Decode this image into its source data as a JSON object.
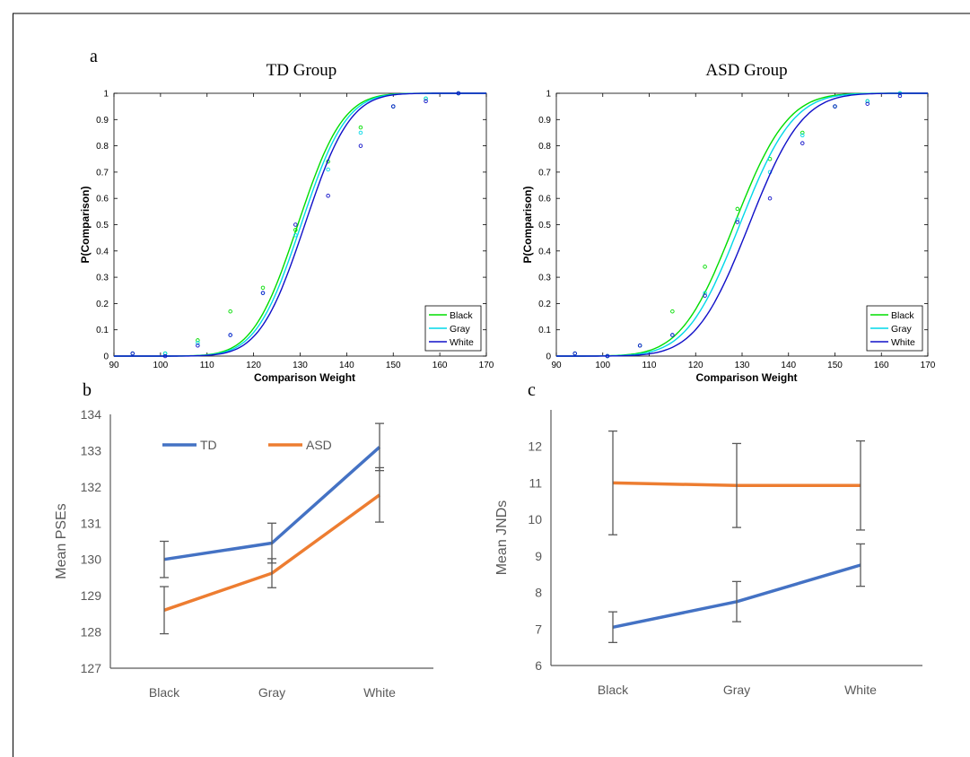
{
  "panels": {
    "a": "a",
    "b": "b",
    "c": "c"
  },
  "chart_data": [
    {
      "id": "td",
      "type": "line",
      "title": "TD Group",
      "xlabel": "Comparison Weight",
      "ylabel": "P(Comparison)",
      "xlim": [
        90,
        170
      ],
      "ylim": [
        0,
        1
      ],
      "xticks": [
        "90",
        "100",
        "110",
        "120",
        "130",
        "140",
        "150",
        "160",
        "170"
      ],
      "yticks": [
        "0",
        "0.1",
        "0.2",
        "0.3",
        "0.4",
        "0.5",
        "0.6",
        "0.7",
        "0.8",
        "0.9",
        "1"
      ],
      "legend_position": "bottom-right",
      "series": [
        {
          "name": "Black",
          "color": "#00dd00",
          "mu": 129.5,
          "sigma": 7.6,
          "points": [
            [
              94,
              0.01
            ],
            [
              101,
              0.01
            ],
            [
              108,
              0.06
            ],
            [
              115,
              0.17
            ],
            [
              122,
              0.26
            ],
            [
              129,
              0.48
            ],
            [
              136,
              0.74
            ],
            [
              143,
              0.87
            ],
            [
              150,
              0.95
            ],
            [
              157,
              0.98
            ],
            [
              164,
              1.0
            ]
          ]
        },
        {
          "name": "Gray",
          "color": "#00d8e8",
          "mu": 130.2,
          "sigma": 7.6,
          "points": [
            [
              94,
              0.01
            ],
            [
              101,
              0.01
            ],
            [
              108,
              0.05
            ],
            [
              115,
              0.08
            ],
            [
              122,
              0.24
            ],
            [
              129,
              0.46
            ],
            [
              136,
              0.71
            ],
            [
              143,
              0.85
            ],
            [
              150,
              0.95
            ],
            [
              157,
              0.98
            ],
            [
              164,
              1.0
            ]
          ]
        },
        {
          "name": "White",
          "color": "#1010c8",
          "mu": 131.0,
          "sigma": 7.6,
          "points": [
            [
              94,
              0.01
            ],
            [
              101,
              0.0
            ],
            [
              108,
              0.04
            ],
            [
              115,
              0.08
            ],
            [
              122,
              0.24
            ],
            [
              129,
              0.5
            ],
            [
              136,
              0.61
            ],
            [
              143,
              0.8
            ],
            [
              150,
              0.95
            ],
            [
              157,
              0.97
            ],
            [
              164,
              1.0
            ]
          ]
        }
      ]
    },
    {
      "id": "asd",
      "type": "line",
      "title": "ASD Group",
      "xlabel": "Comparison Weight",
      "ylabel": "P(Comparison)",
      "xlim": [
        90,
        170
      ],
      "ylim": [
        0,
        1
      ],
      "xticks": [
        "90",
        "100",
        "110",
        "120",
        "130",
        "140",
        "150",
        "160",
        "170"
      ],
      "yticks": [
        "0",
        "0.1",
        "0.2",
        "0.3",
        "0.4",
        "0.5",
        "0.6",
        "0.7",
        "0.8",
        "0.9",
        "1"
      ],
      "legend_position": "bottom-right",
      "series": [
        {
          "name": "Black",
          "color": "#00dd00",
          "mu": 128.3,
          "sigma": 9.0,
          "points": [
            [
              94,
              0.01
            ],
            [
              101,
              0.0
            ],
            [
              108,
              0.04
            ],
            [
              115,
              0.17
            ],
            [
              122,
              0.34
            ],
            [
              129,
              0.56
            ],
            [
              136,
              0.75
            ],
            [
              143,
              0.85
            ],
            [
              150,
              0.95
            ],
            [
              157,
              0.97
            ],
            [
              164,
              1.0
            ]
          ]
        },
        {
          "name": "Gray",
          "color": "#00d8e8",
          "mu": 129.5,
          "sigma": 9.0,
          "points": [
            [
              94,
              0.01
            ],
            [
              101,
              0.0
            ],
            [
              108,
              0.04
            ],
            [
              115,
              0.08
            ],
            [
              122,
              0.24
            ],
            [
              129,
              0.52
            ],
            [
              136,
              0.7
            ],
            [
              143,
              0.84
            ],
            [
              150,
              0.95
            ],
            [
              157,
              0.97
            ],
            [
              164,
              1.0
            ]
          ]
        },
        {
          "name": "White",
          "color": "#1010c8",
          "mu": 131.5,
          "sigma": 9.0,
          "points": [
            [
              94,
              0.01
            ],
            [
              101,
              0.0
            ],
            [
              108,
              0.04
            ],
            [
              115,
              0.08
            ],
            [
              122,
              0.23
            ],
            [
              129,
              0.51
            ],
            [
              136,
              0.6
            ],
            [
              143,
              0.81
            ],
            [
              150,
              0.95
            ],
            [
              157,
              0.96
            ],
            [
              164,
              0.99
            ]
          ]
        }
      ]
    },
    {
      "id": "pse",
      "type": "line",
      "title": "",
      "xlabel": "",
      "ylabel": "Mean PSEs",
      "categories": [
        "Black",
        "Gray",
        "White"
      ],
      "ylim": [
        127,
        134
      ],
      "yticks": [
        "127",
        "128",
        "129",
        "130",
        "131",
        "132",
        "133",
        "134"
      ],
      "legend_position": "top",
      "series": [
        {
          "name": "TD",
          "color": "#4472c4",
          "values": [
            130.0,
            130.45,
            133.1
          ],
          "errors": [
            0.5,
            0.55,
            0.65
          ]
        },
        {
          "name": "ASD",
          "color": "#ed7d31",
          "values": [
            128.6,
            129.62,
            131.78
          ],
          "errors": [
            0.65,
            0.4,
            0.75
          ]
        }
      ]
    },
    {
      "id": "jnd",
      "type": "line",
      "title": "",
      "xlabel": "",
      "ylabel": "Mean JNDs",
      "categories": [
        "Black",
        "Gray",
        "White"
      ],
      "ylim": [
        6,
        13
      ],
      "yticks": [
        "6",
        "7",
        "8",
        "9",
        "10",
        "11",
        "12"
      ],
      "series": [
        {
          "name": "TD",
          "color": "#4472c4",
          "values": [
            7.05,
            7.75,
            8.75
          ],
          "errors": [
            0.42,
            0.55,
            0.58
          ]
        },
        {
          "name": "ASD",
          "color": "#ed7d31",
          "values": [
            11.0,
            10.93,
            10.93
          ],
          "errors": [
            1.42,
            1.15,
            1.22
          ]
        }
      ]
    }
  ]
}
